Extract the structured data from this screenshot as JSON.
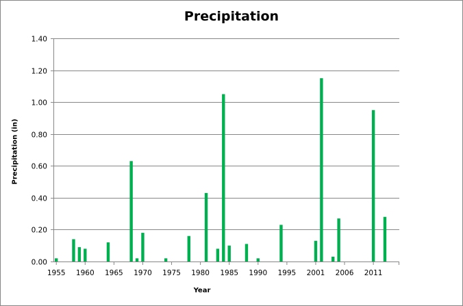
{
  "chart_data": {
    "type": "bar",
    "title": "Precipitation",
    "xlabel": "Year",
    "ylabel": "Precipitation (in)",
    "ylim": [
      0,
      1.4
    ],
    "ytick_step": 0.2,
    "grid": true,
    "legend": "none",
    "bar_color": "#00b050",
    "categories": [
      1955,
      1956,
      1957,
      1958,
      1959,
      1960,
      1961,
      1962,
      1963,
      1964,
      1965,
      1966,
      1967,
      1968,
      1969,
      1970,
      1971,
      1972,
      1973,
      1974,
      1975,
      1976,
      1977,
      1978,
      1979,
      1980,
      1981,
      1982,
      1983,
      1984,
      1985,
      1986,
      1987,
      1988,
      1989,
      1990,
      1991,
      1992,
      1993,
      1994,
      1995,
      1996,
      1997,
      1998,
      1999,
      2001,
      2002,
      2003,
      2004,
      2005,
      2006,
      2007,
      2008,
      2009,
      2010,
      2011,
      2012,
      2013,
      2014,
      2015
    ],
    "values": [
      0.02,
      0,
      0,
      0.14,
      0.09,
      0.08,
      0,
      0,
      0,
      0.12,
      0,
      0,
      0,
      0.63,
      0.02,
      0.18,
      0,
      0,
      0,
      0.02,
      0,
      0,
      0,
      0.16,
      0,
      0,
      0.43,
      0,
      0.08,
      1.05,
      0.1,
      0,
      0,
      0.11,
      0,
      0.02,
      0,
      0,
      0,
      0.23,
      0,
      0,
      0,
      0,
      0,
      0.13,
      1.15,
      0,
      0.03,
      0.27,
      0,
      0,
      0,
      0,
      0,
      0.95,
      0,
      0.28,
      0,
      0
    ],
    "xtick_labels": [
      "1955",
      "1960",
      "1965",
      "1970",
      "1975",
      "1980",
      "1985",
      "1990",
      "1995",
      "2001",
      "2006",
      "2011"
    ],
    "ytick_labels": [
      "0.00",
      "0.20",
      "0.40",
      "0.60",
      "0.80",
      "1.00",
      "1.20",
      "1.40"
    ]
  }
}
